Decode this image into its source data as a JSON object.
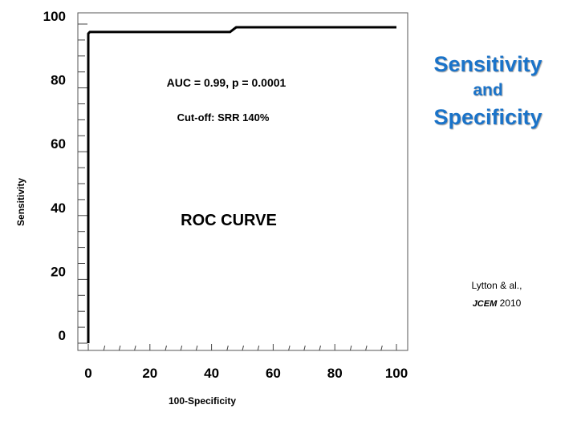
{
  "side_title": {
    "line1": "Sensitivity",
    "line2": "and",
    "line3": "Specificity",
    "color": "#1a73c9"
  },
  "citation": {
    "authors": "Lytton & al.,",
    "journal": "JCEM",
    "year": "2010"
  },
  "chart_data": {
    "type": "line",
    "title": "ROC CURVE",
    "xlabel": "100-Specificity",
    "ylabel": "Sensitivity",
    "xlim": [
      0,
      100
    ],
    "ylim": [
      0,
      100
    ],
    "x_ticks": [
      0,
      20,
      40,
      60,
      80,
      100
    ],
    "y_ticks": [
      0,
      20,
      40,
      60,
      80,
      100
    ],
    "grid": false,
    "annotations": [
      "AUC = 0.99, p = 0.0001",
      "Cut-off:  SRR 140%"
    ],
    "series": [
      {
        "x": [
          0,
          0,
          0.5,
          46,
          48,
          100
        ],
        "y": [
          0,
          97,
          97.5,
          97.5,
          99,
          99
        ],
        "color": "#000000"
      }
    ]
  }
}
